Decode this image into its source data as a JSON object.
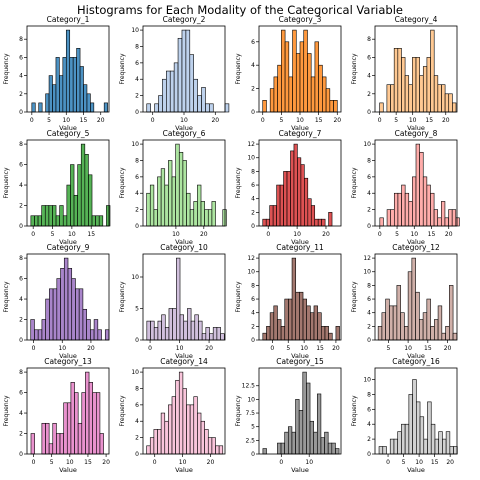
{
  "figure": {
    "title": "Histograms for Each Modality of the Categorical Variable"
  },
  "chart_data": [
    {
      "type": "bar",
      "title": "Category_1",
      "xlabel": "Value",
      "ylabel": "Frequency",
      "color": "#1f77b4",
      "xlim": [
        -1.4,
        22.4
      ],
      "ylim": [
        0,
        9.45
      ],
      "xticks": [
        0,
        5,
        10,
        15,
        20
      ],
      "yticks": [
        0,
        2,
        4,
        6,
        8
      ],
      "bin_start": 0.0,
      "bin_width": 1.0,
      "values": [
        1,
        0,
        1,
        0,
        2,
        4,
        3,
        6,
        4,
        6,
        9,
        6,
        6,
        7,
        5,
        3,
        2,
        1,
        0,
        0,
        0,
        1
      ]
    },
    {
      "type": "bar",
      "title": "Category_2",
      "xlabel": "Value",
      "ylabel": "Frequency",
      "color": "#aec7e8",
      "xlim": [
        -3.1,
        23.1
      ],
      "ylim": [
        0,
        10.5
      ],
      "xticks": [
        0,
        10,
        20
      ],
      "yticks": [
        0,
        2,
        4,
        6,
        8,
        10
      ],
      "bin_start": -1.9,
      "bin_width": 1.25,
      "values": [
        1,
        0,
        1,
        2,
        4,
        5,
        5,
        6,
        9,
        10,
        10,
        7,
        4,
        2,
        3,
        1,
        1,
        0,
        0,
        0,
        1
      ]
    },
    {
      "type": "bar",
      "title": "Category_3",
      "xlabel": "Value",
      "ylabel": "Frequency",
      "color": "#ff7f0e",
      "xlim": [
        -1.0,
        21.0
      ],
      "ylim": [
        0,
        7.35
      ],
      "xticks": [
        0,
        5,
        10,
        15,
        20
      ],
      "yticks": [
        0,
        2,
        4,
        6
      ],
      "bin_start": 0.0,
      "bin_width": 1.0,
      "values": [
        1,
        0,
        2,
        3,
        4,
        7,
        6,
        3,
        7,
        5,
        6,
        7,
        5,
        3,
        6,
        4,
        3,
        2,
        1,
        1
      ]
    },
    {
      "type": "bar",
      "title": "Category_4",
      "xlabel": "Value",
      "ylabel": "Frequency",
      "color": "#ffbb78",
      "xlim": [
        -1.4,
        23.4
      ],
      "ylim": [
        0,
        9.45
      ],
      "xticks": [
        0,
        5,
        10,
        15,
        20
      ],
      "yticks": [
        0,
        2,
        4,
        6,
        8
      ],
      "bin_start": 0.0,
      "bin_width": 1.1,
      "values": [
        1,
        0,
        3,
        3,
        7,
        7,
        6,
        4,
        3,
        6,
        6,
        4,
        5,
        6,
        9,
        4,
        3,
        3,
        2,
        2,
        1
      ]
    },
    {
      "type": "bar",
      "title": "Category_5",
      "xlabel": "Value",
      "ylabel": "Frequency",
      "color": "#2ca02c",
      "xlim": [
        -1.6,
        19.6
      ],
      "ylim": [
        0,
        8.4
      ],
      "xticks": [
        0,
        5,
        10,
        15
      ],
      "yticks": [
        0,
        2,
        4,
        6,
        8
      ],
      "bin_start": -0.6,
      "bin_width": 0.93,
      "values": [
        1,
        1,
        1,
        2,
        2,
        2,
        2,
        1,
        2,
        1,
        4,
        6,
        3,
        6,
        8,
        7,
        5,
        1,
        1,
        1,
        0,
        2
      ]
    },
    {
      "type": "bar",
      "title": "Category_6",
      "xlabel": "Value",
      "ylabel": "Frequency",
      "color": "#98df8a",
      "xlim": [
        -1.8,
        27.6
      ],
      "ylim": [
        0,
        10.5
      ],
      "xticks": [
        10,
        20
      ],
      "yticks": [
        0,
        2,
        4,
        6,
        8,
        10
      ],
      "bin_start": -0.5,
      "bin_width": 1.3,
      "values": [
        4,
        5,
        2,
        6,
        7,
        5,
        8,
        6,
        10,
        9,
        8,
        4,
        2,
        3,
        5,
        3,
        2,
        2,
        3,
        0,
        0,
        2
      ]
    },
    {
      "type": "bar",
      "title": "Category_7",
      "xlabel": "Value",
      "ylabel": "Frequency",
      "color": "#d62728",
      "xlim": [
        -3.2,
        25.2
      ],
      "ylim": [
        0,
        12.6
      ],
      "xticks": [
        0,
        10,
        20
      ],
      "yticks": [
        0,
        2,
        4,
        6,
        8,
        10,
        12
      ],
      "bin_start": -1.9,
      "bin_width": 1.2,
      "values": [
        1,
        1,
        3,
        3,
        6,
        6,
        8,
        8,
        11,
        12,
        10,
        9,
        7,
        4,
        3,
        1,
        1,
        1,
        0,
        2
      ]
    },
    {
      "type": "bar",
      "title": "Category_8",
      "xlabel": "Value",
      "ylabel": "Frequency",
      "color": "#ff9896",
      "xlim": [
        -1.4,
        22.4
      ],
      "ylim": [
        0,
        10.5
      ],
      "xticks": [
        0,
        5,
        10,
        15,
        20
      ],
      "yticks": [
        0,
        2,
        4,
        6,
        8,
        10
      ],
      "bin_start": 0.0,
      "bin_width": 1.05,
      "values": [
        1,
        0,
        2,
        2,
        4,
        4,
        5,
        4,
        3,
        6,
        10,
        9,
        6,
        5,
        4,
        2,
        1,
        3,
        1,
        2,
        2,
        1
      ]
    },
    {
      "type": "bar",
      "title": "Category_9",
      "xlabel": "Value",
      "ylabel": "Frequency",
      "color": "#9467bd",
      "xlim": [
        -2.3,
        26.3
      ],
      "ylim": [
        0,
        8.4
      ],
      "xticks": [
        0,
        10,
        20
      ],
      "yticks": [
        0,
        2,
        4,
        6,
        8
      ],
      "bin_start": -1.0,
      "bin_width": 1.3,
      "values": [
        2,
        1,
        1,
        2,
        4,
        5,
        5,
        6,
        7,
        8,
        7,
        6,
        5,
        5,
        3,
        2,
        1,
        2,
        1,
        0,
        1
      ]
    },
    {
      "type": "bar",
      "title": "Category_10",
      "xlabel": "Value",
      "ylabel": "Frequency",
      "color": "#c5b0d5",
      "xlim": [
        -2.4,
        25.4
      ],
      "ylim": [
        0,
        13.65
      ],
      "xticks": [
        0,
        10,
        20
      ],
      "yticks": [
        0,
        5,
        10
      ],
      "bin_start": -1.1,
      "bin_width": 1.25,
      "values": [
        3,
        3,
        2,
        3,
        4,
        2,
        5,
        5,
        13,
        4,
        3,
        5,
        3,
        4,
        3,
        1,
        2,
        1,
        2,
        2,
        1
      ]
    },
    {
      "type": "bar",
      "title": "Category_11",
      "xlabel": "Value",
      "ylabel": "Frequency",
      "color": "#8c564b",
      "xlim": [
        -4.2,
        21.6
      ],
      "ylim": [
        0,
        12.6
      ],
      "xticks": [
        0,
        5,
        10,
        15,
        20
      ],
      "yticks": [
        0,
        2,
        4,
        6,
        8,
        10,
        12
      ],
      "bin_start": -3.0,
      "bin_width": 1.15,
      "values": [
        1,
        2,
        4,
        5,
        3,
        2,
        6,
        6,
        12,
        7,
        7,
        6,
        5,
        4,
        5,
        4,
        2,
        2,
        1,
        0,
        2
      ]
    },
    {
      "type": "bar",
      "title": "Category_12",
      "xlabel": "Value",
      "ylabel": "Frequency",
      "color": "#c49c94",
      "xlim": [
        1.6,
        22.4
      ],
      "ylim": [
        0,
        12.6
      ],
      "xticks": [
        5,
        10,
        15,
        20
      ],
      "yticks": [
        0,
        2,
        4,
        6,
        8,
        10,
        12
      ],
      "bin_start": 2.4,
      "bin_width": 0.95,
      "values": [
        2,
        4,
        6,
        5,
        5,
        8,
        4,
        2,
        10,
        12,
        7,
        3,
        4,
        6,
        2,
        3,
        5,
        1,
        2,
        8,
        1
      ]
    },
    {
      "type": "bar",
      "title": "Category_13",
      "xlabel": "Value",
      "ylabel": "Frequency",
      "color": "#e377c2",
      "xlim": [
        -1.8,
        20.8
      ],
      "ylim": [
        0,
        8.4
      ],
      "xticks": [
        0,
        5,
        10,
        15,
        20
      ],
      "yticks": [
        0,
        2,
        4,
        6,
        8
      ],
      "bin_start": -0.7,
      "bin_width": 1.0,
      "values": [
        2,
        0,
        0,
        3,
        3,
        1,
        3,
        2,
        2,
        5,
        5,
        7,
        6,
        3,
        6,
        8,
        7,
        6,
        6,
        2
      ]
    },
    {
      "type": "bar",
      "title": "Category_14",
      "xlabel": "Value",
      "ylabel": "Frequency",
      "color": "#f7b6d2",
      "xlim": [
        -4.2,
        25.2
      ],
      "ylim": [
        0,
        10.5
      ],
      "xticks": [
        0,
        10,
        20
      ],
      "yticks": [
        0,
        2,
        4,
        6,
        8,
        10
      ],
      "bin_start": -2.9,
      "bin_width": 1.3,
      "values": [
        1,
        2,
        3,
        3,
        5,
        4,
        6,
        7,
        9,
        10,
        8,
        6,
        6,
        7,
        5,
        4,
        3,
        2,
        2,
        1,
        1
      ]
    },
    {
      "type": "bar",
      "title": "Category_15",
      "xlabel": "Value",
      "ylabel": "Frequency",
      "color": "#7f7f7f",
      "xlim": [
        -8.0,
        21.4
      ],
      "ylim": [
        0,
        15.75
      ],
      "xticks": [
        0,
        10
      ],
      "yticks": [
        0,
        2.5,
        5,
        7.5,
        10,
        12.5
      ],
      "bin_start": -6.6,
      "bin_width": 1.3,
      "values": [
        1,
        0,
        0,
        0,
        2,
        2,
        4,
        5,
        4,
        10,
        8,
        15,
        13,
        6,
        4,
        11,
        3,
        4,
        2,
        2,
        1
      ]
    },
    {
      "type": "bar",
      "title": "Category_16",
      "xlabel": "Value",
      "ylabel": "Frequency",
      "color": "#c7c7c7",
      "xlim": [
        -4.2,
        22.2
      ],
      "ylim": [
        0,
        11.55
      ],
      "xticks": [
        0,
        5,
        10,
        15,
        20
      ],
      "yticks": [
        0,
        2,
        4,
        6,
        8,
        10
      ],
      "bin_start": -2.9,
      "bin_width": 1.2,
      "values": [
        1,
        1,
        0,
        2,
        2,
        3,
        4,
        4,
        8,
        10,
        7,
        5,
        2,
        7,
        4,
        2,
        3,
        2,
        3,
        1,
        1
      ]
    }
  ]
}
